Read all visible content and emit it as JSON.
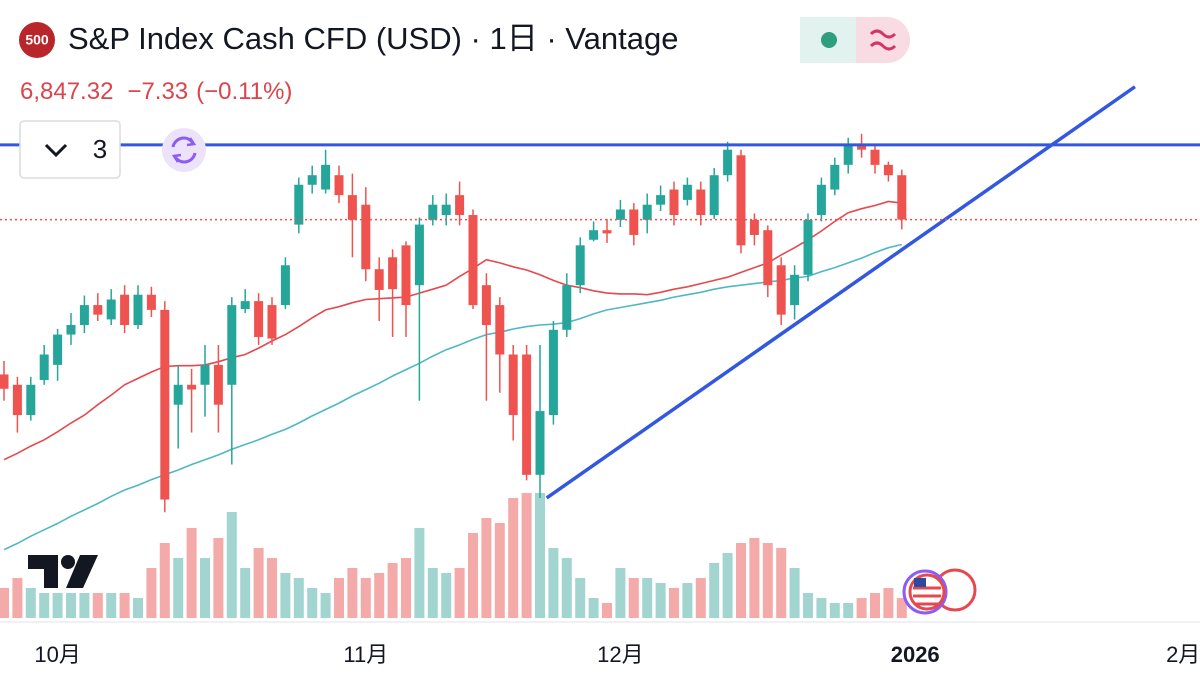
{
  "chart_data": {
    "type": "candlestick",
    "symbol_badge": "500",
    "title": "S&P Index Cash CFD (USD) · 1日 · Vantage",
    "last_price": {
      "value": 6847.32,
      "label": "6,847.32"
    },
    "change": {
      "value": -7.33,
      "label": "−7.33"
    },
    "change_percent": {
      "value": -0.11,
      "label": "(−0.11%)"
    },
    "indicator_count": 3,
    "ylim": [
      6390,
      7030
    ],
    "vlim": [
      0,
      200
    ],
    "up_color": "#26a69a",
    "down_color": "#ef5350",
    "volume_up_color": "#a3d5d0",
    "volume_down_color": "#f3aaa8",
    "categories": [
      null,
      null,
      null,
      null,
      "10月",
      null,
      null,
      null,
      null,
      null,
      null,
      null,
      null,
      null,
      null,
      null,
      null,
      null,
      null,
      null,
      null,
      null,
      null,
      null,
      null,
      null,
      null,
      "11月",
      null,
      null,
      null,
      null,
      null,
      null,
      null,
      null,
      null,
      null,
      null,
      null,
      null,
      null,
      null,
      null,
      null,
      null,
      "12月",
      null,
      null,
      null,
      null,
      null,
      null,
      null,
      null,
      null,
      null,
      null,
      null,
      null,
      null,
      null,
      null,
      null,
      null,
      null,
      null,
      null,
      "2026",
      null,
      null,
      null,
      null,
      null,
      null,
      null,
      null,
      null,
      null,
      null,
      null,
      null,
      null,
      null,
      null,
      null,
      null,
      null,
      "2月"
    ],
    "open": [
      6653,
      6640,
      6602,
      6646,
      6665,
      6703,
      6715,
      6740,
      6722,
      6753,
      6715,
      6753,
      6734,
      6615,
      6640,
      6640,
      6665,
      6640,
      6735,
      6745,
      6740,
      6740,
      6841,
      6891,
      6885,
      6903,
      6878,
      6866,
      6785,
      6800,
      6815,
      6765,
      6847,
      6853,
      6878,
      6853,
      6765,
      6740,
      6678,
      6678,
      6527,
      6602,
      6709,
      6765,
      6822,
      6834,
      6847,
      6860,
      6847,
      6866,
      6885,
      6872,
      6885,
      6853,
      6903,
      6928,
      6847,
      6834,
      6790,
      6740,
      6778,
      6853,
      6885,
      6916,
      6941,
      6935,
      6916,
      6903,
      null,
      null,
      null,
      null,
      null,
      null,
      null,
      null,
      null,
      null,
      null,
      null,
      null,
      null,
      null,
      null,
      null,
      null,
      null,
      null,
      null
    ],
    "high": [
      6670,
      6650,
      6650,
      6690,
      6710,
      6730,
      6752,
      6755,
      6760,
      6765,
      6765,
      6763,
      6745,
      6665,
      6660,
      6690,
      6690,
      6750,
      6760,
      6755,
      6750,
      6800,
      6900,
      6915,
      6935,
      6915,
      6905,
      6888,
      6800,
      6810,
      6820,
      6850,
      6878,
      6880,
      6895,
      6860,
      6780,
      6750,
      6690,
      6690,
      6690,
      6720,
      6780,
      6825,
      6845,
      6848,
      6872,
      6868,
      6880,
      6890,
      6895,
      6900,
      6895,
      6912,
      6945,
      6935,
      6855,
      6840,
      6800,
      6790,
      6855,
      6900,
      6925,
      6950,
      6955,
      6940,
      6920,
      6910,
      null,
      null,
      null,
      null,
      null,
      null,
      null,
      null,
      null,
      null,
      null,
      null,
      null,
      null,
      null,
      null,
      null,
      null,
      null,
      null,
      null
    ],
    "low": [
      6620,
      6580,
      6595,
      6640,
      6645,
      6690,
      6705,
      6720,
      6715,
      6705,
      6710,
      6725,
      6480,
      6560,
      6580,
      6600,
      6580,
      6540,
      6730,
      6690,
      6690,
      6735,
      6830,
      6880,
      6880,
      6868,
      6800,
      6770,
      6720,
      6700,
      6700,
      6620,
      6840,
      6840,
      6840,
      6735,
      6620,
      6630,
      6570,
      6520,
      6498,
      6590,
      6700,
      6755,
      6820,
      6818,
      6838,
      6815,
      6830,
      6858,
      6840,
      6865,
      6840,
      6848,
      6895,
      6805,
      6815,
      6750,
      6715,
      6722,
      6770,
      6845,
      6878,
      6905,
      6925,
      6905,
      6895,
      6835,
      null,
      null,
      null,
      null,
      null,
      null,
      null,
      null,
      null,
      null,
      null,
      null,
      null,
      null,
      null,
      null,
      null,
      null,
      null,
      null,
      null
    ],
    "close": [
      6635,
      6602,
      6640,
      6678,
      6703,
      6715,
      6740,
      6728,
      6747,
      6715,
      6753,
      6734,
      6496,
      6640,
      6634,
      6665,
      6615,
      6740,
      6745,
      6700,
      6698,
      6790,
      6891,
      6903,
      6916,
      6878,
      6847,
      6785,
      6759,
      6760,
      6740,
      6841,
      6866,
      6866,
      6853,
      6740,
      6715,
      6678,
      6602,
      6527,
      6607,
      6709,
      6765,
      6815,
      6834,
      6830,
      6860,
      6828,
      6866,
      6878,
      6853,
      6891,
      6853,
      6903,
      6935,
      6815,
      6828,
      6765,
      6728,
      6778,
      6847,
      6891,
      6916,
      6941,
      6935,
      6916,
      6903,
      6847.32,
      null,
      null,
      null,
      null,
      null,
      null,
      null,
      null,
      null,
      null,
      null,
      null,
      null,
      null,
      null,
      null,
      null,
      null,
      null,
      null,
      null
    ],
    "volume": [
      30,
      40,
      30,
      25,
      25,
      25,
      25,
      25,
      25,
      25,
      20,
      50,
      75,
      60,
      90,
      60,
      80,
      106,
      50,
      70,
      60,
      45,
      40,
      30,
      25,
      40,
      50,
      40,
      45,
      55,
      60,
      90,
      50,
      45,
      50,
      85,
      100,
      95,
      120,
      125,
      125,
      70,
      60,
      40,
      20,
      15,
      50,
      40,
      40,
      35,
      30,
      35,
      40,
      55,
      65,
      75,
      80,
      75,
      70,
      50,
      25,
      20,
      15,
      15,
      20,
      25,
      30,
      20,
      null,
      null,
      null,
      null,
      null,
      null,
      null,
      null,
      null,
      null,
      null,
      null,
      null,
      null,
      null,
      null,
      null,
      null,
      null,
      null,
      null
    ],
    "overlays": [
      {
        "color": "#e5484d",
        "values": [
          6546,
          6554,
          6563,
          6571,
          6581,
          6592,
          6602,
          6615,
          6627,
          6640,
          6648,
          6656,
          6663,
          6664,
          6664,
          6665,
          6669,
          6674,
          6678,
          6686,
          6695,
          6703,
          6713,
          6724,
          6734,
          6738,
          6743,
          6747,
          6748,
          6749,
          6750,
          6755,
          6760,
          6765,
          6776,
          6786,
          6797,
          6793,
          6788,
          6784,
          6778,
          6771,
          6765,
          6762,
          6758,
          6755,
          6754,
          6754,
          6753,
          6756,
          6760,
          6763,
          6767,
          6771,
          6775,
          6781,
          6787,
          6793,
          6803,
          6812,
          6822,
          6833,
          6845,
          6856,
          6861,
          6865,
          6870,
          6868,
          null,
          null,
          null,
          null,
          null,
          null,
          null,
          null,
          null,
          null,
          null,
          null,
          null,
          null,
          null,
          null,
          null,
          null,
          null,
          null,
          null
        ]
      },
      {
        "color": "#4fb8c4",
        "values": [
          6433,
          6441,
          6450,
          6458,
          6466,
          6475,
          6483,
          6491,
          6500,
          6508,
          6514,
          6521,
          6527,
          6533,
          6540,
          6546,
          6552,
          6559,
          6565,
          6571,
          6578,
          6584,
          6592,
          6601,
          6609,
          6617,
          6626,
          6634,
          6642,
          6651,
          6659,
          6667,
          6676,
          6684,
          6690,
          6697,
          6703,
          6706,
          6710,
          6713,
          6715,
          6716,
          6718,
          6723,
          6729,
          6734,
          6737,
          6740,
          6743,
          6746,
          6750,
          6753,
          6756,
          6760,
          6763,
          6765,
          6767,
          6769,
          6771,
          6774,
          6776,
          6782,
          6787,
          6793,
          6799,
          6806,
          6812,
          6816,
          null,
          null,
          null,
          null,
          null,
          null,
          null,
          null,
          null,
          null,
          null,
          null,
          null,
          null,
          null,
          null,
          null,
          null,
          null,
          null,
          null
        ]
      }
    ],
    "horizontal_line": {
      "color": "#3358e0",
      "value": 6941
    },
    "trend_line": {
      "color": "#3358e0",
      "x": [
        40.5,
        84.4
      ],
      "y": [
        6498,
        7014
      ]
    }
  }
}
